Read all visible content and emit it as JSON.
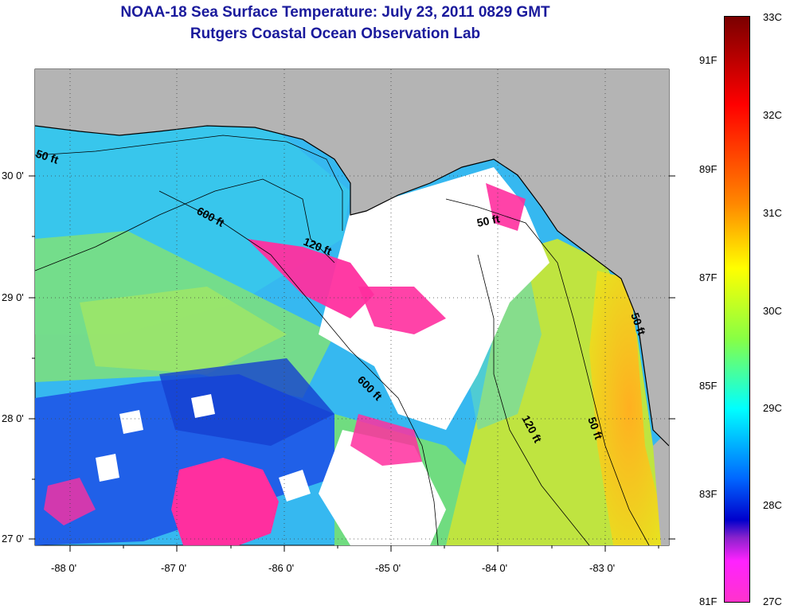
{
  "title": {
    "line1": "NOAA-18 Sea Surface Temperature:  July 23, 2011 0829 GMT",
    "line2": "Rutgers Coastal Ocean Observation Lab"
  },
  "map": {
    "longitude_labels": [
      "-88 0'",
      "-87 0'",
      "-86 0'",
      "-85 0'",
      "-84 0'",
      "-83 0'"
    ],
    "latitude_labels": [
      "30 0'",
      "29 0'",
      "28 0'",
      "27 0'"
    ],
    "contour_labels": [
      "50 ft",
      "600 ft",
      "120 ft",
      "50 ft",
      "600 ft",
      "120 ft",
      "50 ft",
      "50 ft"
    ],
    "colors": {
      "land": "#b4b4b4",
      "cloud": "#ffffff",
      "coast": "#000000"
    }
  },
  "colorbar": {
    "fahrenheit_labels": [
      "91F",
      "89F",
      "87F",
      "85F",
      "83F",
      "81F"
    ],
    "celsius_labels": [
      "33C",
      "32C",
      "31C",
      "30C",
      "29C",
      "28C",
      "27C"
    ],
    "stops": [
      "#7a0000",
      "#ff0000",
      "#ff8800",
      "#ffff00",
      "#88ff44",
      "#00ffff",
      "#0066ff",
      "#0000cc",
      "#8822cc",
      "#ff22ff",
      "#ff33cc"
    ]
  }
}
